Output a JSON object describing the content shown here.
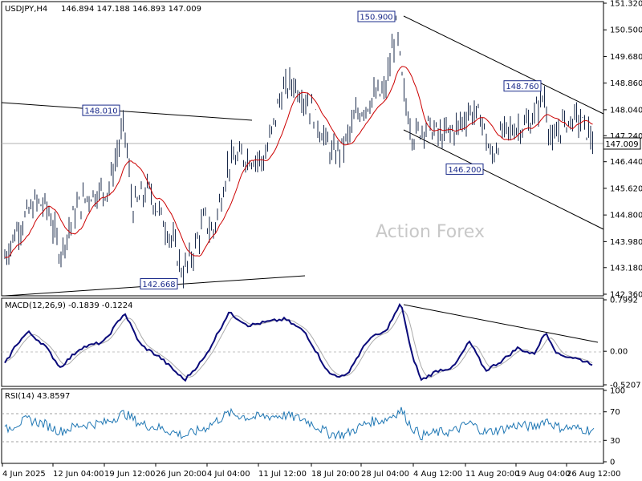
{
  "chart_data": [
    {
      "type": "candlestick",
      "title": "USDJPY,H4",
      "ohlc_label": "146.894 147.188 146.893 147.009",
      "watermark": "Action Forex",
      "current_price": 147.009,
      "current_price_label": "147.009",
      "ylim": [
        142.36,
        151.32
      ],
      "y_ticks": [
        "151.320",
        "150.500",
        "149.680",
        "148.860",
        "148.040",
        "147.240",
        "146.440",
        "145.620",
        "144.800",
        "143.980",
        "143.180",
        "142.360"
      ],
      "x_ticks": [
        "4 Jun 2025",
        "12 Jun 04:00",
        "19 Jun 12:00",
        "26 Jun 20:00",
        "4 Jul 04:00",
        "11 Jul 12:00",
        "18 Jul 20:00",
        "28 Jul 04:00",
        "4 Aug 12:00",
        "11 Aug 20:00",
        "19 Aug 04:00",
        "26 Aug 12:00"
      ],
      "price_labels": [
        {
          "text": "150.900",
          "value": 150.9
        },
        {
          "text": "148.010",
          "value": 148.01
        },
        {
          "text": "148.760",
          "value": 148.76
        },
        {
          "text": "146.200",
          "value": 146.2
        },
        {
          "text": "142.668",
          "value": 142.668
        }
      ],
      "moving_average_color": "#cc0000",
      "bar_color": "#1a2a4a"
    },
    {
      "type": "line",
      "title": "MACD(12,26,9) -0.1839 -0.1224",
      "ylim": [
        -0.5207,
        0.7992
      ],
      "y_ticks": [
        "0.7992",
        "0.00",
        "-0.5207"
      ],
      "series": [
        {
          "name": "MACD",
          "color": "#0a0a7a"
        },
        {
          "name": "Signal",
          "color": "#aaaaaa"
        }
      ]
    },
    {
      "type": "line",
      "title": "RSI(14) 43.8597",
      "ylim": [
        0,
        100
      ],
      "y_ticks": [
        "100",
        "70",
        "30",
        "0"
      ],
      "levels": [
        70,
        30
      ],
      "series": [
        {
          "name": "RSI",
          "color": "#1f77b4"
        }
      ]
    }
  ]
}
